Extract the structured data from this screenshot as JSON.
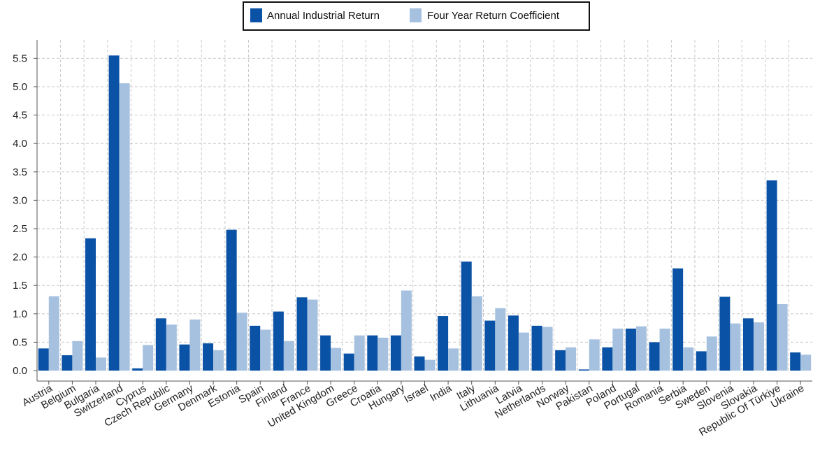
{
  "chart_data": {
    "type": "bar",
    "title": "",
    "xlabel": "",
    "ylabel": "",
    "ylim": [
      0,
      5.8
    ],
    "yticks": [
      "0.0",
      "0.5",
      "1.0",
      "1.5",
      "2.0",
      "2.5",
      "3.0",
      "3.5",
      "4.0",
      "4.5",
      "5.0",
      "5.5"
    ],
    "grid": true,
    "legend_position": "top-center",
    "categories": [
      "Austria",
      "Belgium",
      "Bulgaria",
      "Switzerland",
      "Cyprus",
      "Czech Republic",
      "Germany",
      "Denmark",
      "Estonia",
      "Spain",
      "Finland",
      "France",
      "United Kingdom",
      "Greece",
      "Croatia",
      "Hungary",
      "Israel",
      "India",
      "Italy",
      "Lithuania",
      "Latvia",
      "Netherlands",
      "Norway",
      "Pakistan",
      "Poland",
      "Portugal",
      "Romania",
      "Serbia",
      "Sweden",
      "Slovenia",
      "Slovakia",
      "Republic Of Türkiye",
      "Ukraine"
    ],
    "series": [
      {
        "name": "Annual Industrial Return",
        "color": "#0a52a5",
        "values": [
          0.39,
          0.27,
          2.33,
          5.55,
          0.04,
          0.92,
          0.46,
          0.48,
          2.48,
          0.79,
          1.04,
          1.29,
          0.62,
          0.3,
          0.62,
          0.62,
          0.25,
          0.96,
          1.92,
          0.88,
          0.97,
          0.79,
          0.36,
          0.02,
          0.41,
          0.74,
          0.5,
          1.8,
          0.34,
          1.3,
          0.92,
          3.35,
          0.32
        ]
      },
      {
        "name": "Four Year Return Coefficient",
        "color": "#a6c1df",
        "values": [
          1.31,
          0.52,
          0.23,
          5.06,
          0.45,
          0.81,
          0.9,
          0.36,
          1.02,
          0.72,
          0.52,
          1.25,
          0.4,
          0.62,
          0.58,
          1.41,
          0.19,
          0.39,
          1.31,
          1.1,
          0.67,
          0.77,
          0.41,
          0.55,
          0.74,
          0.78,
          0.74,
          0.41,
          0.6,
          0.83,
          0.85,
          1.17,
          0.28
        ]
      }
    ]
  }
}
